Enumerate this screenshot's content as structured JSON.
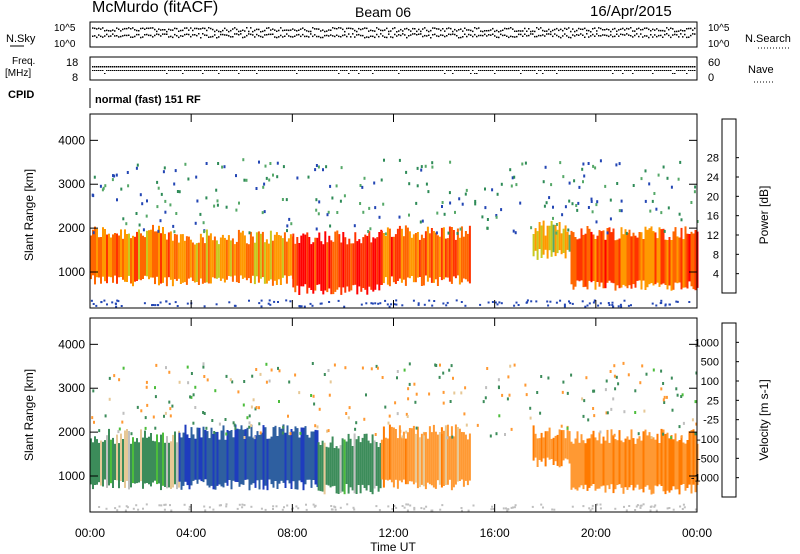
{
  "header": {
    "station": "McMurdo (fitACF)",
    "beam": "Beam 06",
    "date": "16/Apr/2015"
  },
  "noise_panel": {
    "left_label": "N.Sky",
    "right_label": "N.Search",
    "left_ticks": [
      "10^5",
      "10^0"
    ],
    "right_ticks": [
      "10^5",
      "10^0"
    ]
  },
  "freq_panel": {
    "left_label_top": "Freq.",
    "left_label_bottom": "[MHz]",
    "left_ticks": [
      "18",
      "8"
    ],
    "right_label": "Nave",
    "right_ticks": [
      "60",
      "0"
    ]
  },
  "cpid": {
    "label": "CPID",
    "mode_text": "normal (fast) 151 RF"
  },
  "x_axis": {
    "ticks": [
      "00:00",
      "04:00",
      "08:00",
      "12:00",
      "16:00",
      "20:00",
      "00:00"
    ],
    "label": "Time UT"
  },
  "colors": {
    "power_scale": [
      "#1a1aff",
      "#2346b4",
      "#2e8b57",
      "#55a868",
      "#c8c81e",
      "#ff9900",
      "#ff6600",
      "#ff3300",
      "#ff0000"
    ],
    "velocity_scale": [
      "#1e3cbe",
      "#2e5fa0",
      "#3c8c5a",
      "#4cbd3c",
      "#bfbfbf",
      "#e6c896",
      "#ff9933",
      "#ff7a00",
      "#ff4500",
      "#ff0000"
    ]
  },
  "chart_data": [
    {
      "type": "heatmap",
      "title": "",
      "ylabel": "Slant Range [km]",
      "xlabel": "",
      "yticks": [
        "1000",
        "2000",
        "3000",
        "4000"
      ],
      "ylim": [
        180,
        4600
      ],
      "xlim_hours": [
        0,
        24
      ],
      "colorbar": {
        "label": "Power [dB]",
        "ticks": [
          "4",
          "8",
          "12",
          "16",
          "20",
          "24",
          "28"
        ],
        "range": [
          0,
          32
        ]
      },
      "bands": [
        {
          "t0": 0.0,
          "t1": 3.0,
          "r_low": 800,
          "r_high": 1900,
          "value": 22
        },
        {
          "t0": 3.0,
          "t1": 8.0,
          "r_low": 800,
          "r_high": 1800,
          "value": 20
        },
        {
          "t0": 8.0,
          "t1": 11.5,
          "r_low": 600,
          "r_high": 1800,
          "value": 28
        },
        {
          "t0": 11.5,
          "t1": 15.0,
          "r_low": 800,
          "r_high": 1900,
          "value": 24
        },
        {
          "t0": 17.5,
          "t1": 19.0,
          "r_low": 1400,
          "r_high": 2000,
          "value": 16
        },
        {
          "t0": 19.0,
          "t1": 24.0,
          "r_low": 700,
          "r_high": 1900,
          "value": 24
        }
      ]
    },
    {
      "type": "heatmap",
      "title": "",
      "ylabel": "Slant Range [km]",
      "xlabel": "Time UT",
      "yticks": [
        "1000",
        "2000",
        "3000",
        "4000"
      ],
      "ylim": [
        180,
        4600
      ],
      "xlim_hours": [
        0,
        24
      ],
      "colorbar": {
        "label": "Velocity [m s-1]",
        "ticks": [
          "1000",
          "500",
          "100",
          "25",
          "-25",
          "-100",
          "-500",
          "-1000"
        ],
        "range": [
          -1200,
          1200
        ]
      },
      "bands": [
        {
          "t0": 0.0,
          "t1": 3.5,
          "r_low": 800,
          "r_high": 1900,
          "value": 150
        },
        {
          "t0": 3.5,
          "t1": 9.0,
          "r_low": 800,
          "r_high": 2000,
          "value": 900
        },
        {
          "t0": 9.0,
          "t1": 11.5,
          "r_low": 700,
          "r_high": 1800,
          "value": 200
        },
        {
          "t0": 11.5,
          "t1": 15.0,
          "r_low": 800,
          "r_high": 2000,
          "value": -300
        },
        {
          "t0": 17.5,
          "t1": 19.0,
          "r_low": 1300,
          "r_high": 2000,
          "value": -400
        },
        {
          "t0": 19.0,
          "t1": 24.0,
          "r_low": 700,
          "r_high": 1900,
          "value": -450
        }
      ]
    }
  ]
}
